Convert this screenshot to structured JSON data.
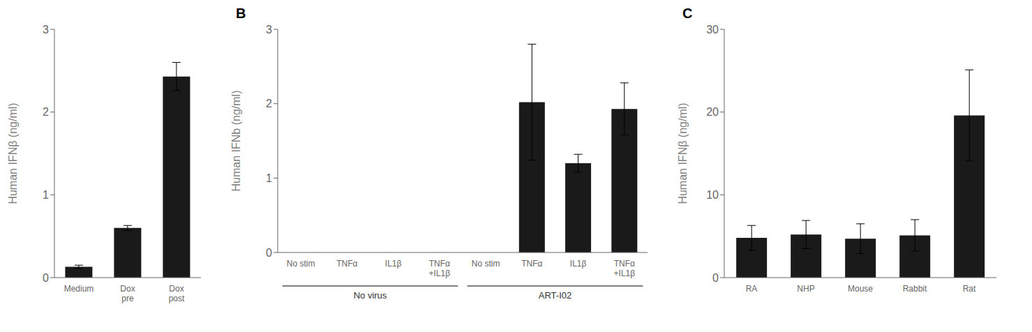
{
  "chart_data": [
    {
      "type": "bar",
      "categories": [
        "Medium",
        "Dox\npre",
        "Dox\npost"
      ],
      "values": [
        0.13,
        0.6,
        2.43
      ],
      "errors": [
        0.02,
        0.03,
        0.17
      ],
      "ylabel": "Human IFNβ (ng/ml)",
      "ylim": [
        0,
        3
      ],
      "yticks": [
        0,
        1,
        2,
        3
      ],
      "color": "#1a1a1a"
    },
    {
      "type": "bar",
      "panel_label": "B",
      "groups": [
        {
          "label": "No virus",
          "categories": [
            "No stim",
            "TNFα",
            "IL1β",
            "TNFα\n+IL1β"
          ]
        },
        {
          "label": "ART-I02",
          "categories": [
            "No stim",
            "TNFα",
            "IL1β",
            "TNFα\n+IL1β"
          ]
        }
      ],
      "values": [
        0.0,
        0.0,
        0.0,
        0.0,
        0.0,
        2.02,
        1.2,
        1.93
      ],
      "errors": [
        0.0,
        0.0,
        0.0,
        0.0,
        0.0,
        0.78,
        0.12,
        0.35
      ],
      "ylabel": "Human IFNb (ng/ml)",
      "ylim": [
        0,
        3
      ],
      "yticks": [
        0,
        1,
        2,
        3
      ],
      "color": "#1a1a1a"
    },
    {
      "type": "bar",
      "panel_label": "C",
      "categories": [
        "RA",
        "NHP",
        "Mouse",
        "Rabbit",
        "Rat"
      ],
      "values": [
        4.8,
        5.2,
        4.7,
        5.1,
        19.6
      ],
      "errors": [
        1.5,
        1.7,
        1.8,
        1.9,
        5.5
      ],
      "ylabel": "Human IFNβ (ng/ml)",
      "ylim": [
        0,
        30
      ],
      "yticks": [
        0,
        10,
        20,
        30
      ],
      "color": "#1a1a1a"
    }
  ]
}
